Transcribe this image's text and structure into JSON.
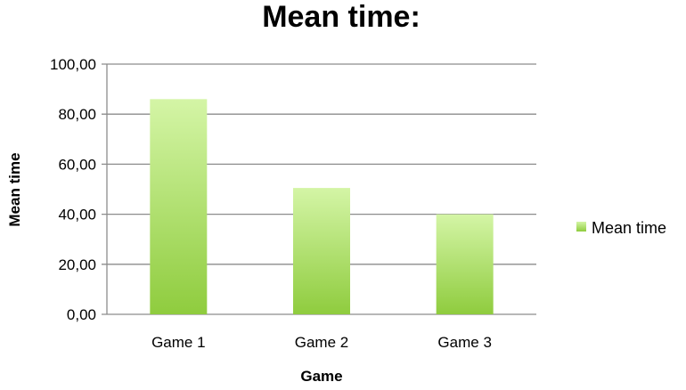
{
  "chart_data": {
    "type": "bar",
    "title": "Mean time:",
    "xlabel": "Game",
    "ylabel": "Mean time",
    "categories": [
      "Game 1",
      "Game 2",
      "Game 3"
    ],
    "series": [
      {
        "name": "Mean time",
        "values": [
          86,
          50.5,
          40
        ]
      }
    ],
    "ylim": [
      0,
      100
    ],
    "yticks": [
      0,
      20,
      40,
      60,
      80,
      100
    ],
    "ytick_labels": [
      "0,00",
      "20,00",
      "40,00",
      "60,00",
      "80,00",
      "100,00"
    ],
    "grid": true,
    "legend": "right",
    "colors": {
      "bar_top": "#d4f5a6",
      "bar_bottom": "#8fcc3e",
      "grid": "#8c8c8c",
      "text": "#000000"
    }
  }
}
